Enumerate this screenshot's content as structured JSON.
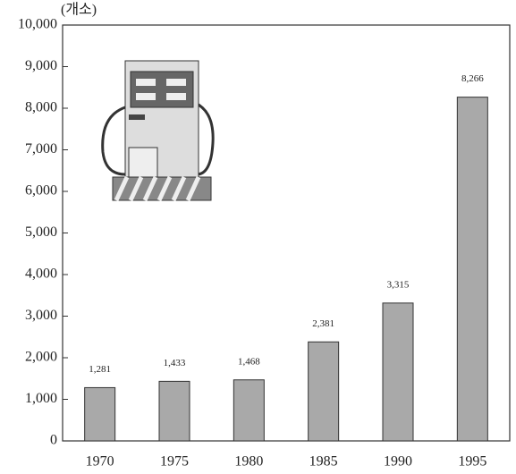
{
  "chart_data": {
    "type": "bar",
    "y_label": "(개소)",
    "categories": [
      "1970",
      "1975",
      "1980",
      "1985",
      "1990",
      "1995"
    ],
    "values": [
      1281,
      1433,
      1468,
      2381,
      3315,
      8266
    ],
    "value_labels": [
      "1,281",
      "1,433",
      "1,468",
      "2,381",
      "3,315",
      "8,266"
    ],
    "color": "#a9a9a9",
    "ylim": [
      0,
      10000
    ],
    "yticks": [
      0,
      {
        "value": 1000,
        "label": "1,000"
      },
      {
        "value": 2000,
        "label": "2,000"
      },
      {
        "value": 3000,
        "label": "3,000"
      },
      {
        "value": 4000,
        "label": "4,000"
      },
      {
        "value": 5000,
        "label": "5,000"
      },
      {
        "value": 6000,
        "label": "6,000"
      },
      {
        "value": 7000,
        "label": "7,000"
      },
      {
        "value": 8000,
        "label": "8,000"
      },
      {
        "value": 9000,
        "label": "9,000"
      },
      {
        "value": 10000,
        "label": "10,000"
      }
    ]
  }
}
